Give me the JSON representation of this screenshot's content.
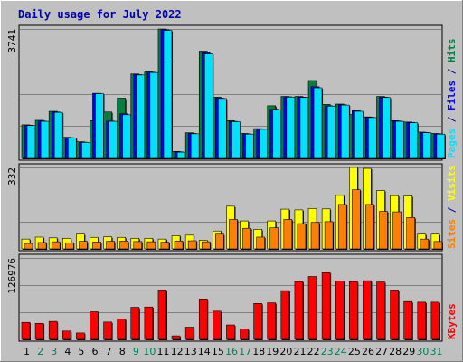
{
  "chart_data": {
    "type": "bar",
    "title": "Daily usage for July 2022",
    "x": [
      1,
      2,
      3,
      4,
      5,
      6,
      7,
      8,
      9,
      10,
      11,
      12,
      13,
      14,
      15,
      16,
      17,
      18,
      19,
      20,
      21,
      22,
      23,
      24,
      25,
      26,
      27,
      28,
      29,
      30,
      31
    ],
    "weekend_days": [
      2,
      3,
      9,
      10,
      16,
      17,
      23,
      24,
      30,
      31
    ],
    "panels": [
      {
        "id": "hits",
        "ymax_label": "3741",
        "ymax": 3741,
        "axis_label_parts": [
          {
            "text": "Pages",
            "color": "#00e0ff"
          },
          {
            "text": " / ",
            "color": "#0000aa"
          },
          {
            "text": "Files",
            "color": "#0000ff"
          },
          {
            "text": " / ",
            "color": "#0000aa"
          },
          {
            "text": "Hits",
            "color": "#008040"
          }
        ],
        "series": [
          {
            "name": "Hits",
            "color": "#008040",
            "values": [
              970,
              1100,
              1360,
              610,
              480,
              1090,
              1340,
              1740,
              2440,
              2500,
              3740,
              200,
              740,
              3100,
              1770,
              1090,
              720,
              860,
              1520,
              1790,
              1790,
              2250,
              1560,
              1570,
              1270,
              1200,
              1790,
              1090,
              1050,
              760,
              720
            ]
          },
          {
            "name": "Files",
            "color": "#0000ff",
            "values": [
              960,
              1080,
              1340,
              600,
              470,
              1880,
              1080,
              1290,
              2420,
              2490,
              3720,
              190,
              720,
              3050,
              1740,
              1070,
              710,
              850,
              1420,
              1780,
              1770,
              2070,
              1520,
              1550,
              1380,
              1190,
              1770,
              1080,
              1040,
              750,
              710
            ]
          },
          {
            "name": "Pages",
            "color": "#00e0ff",
            "values": [
              950,
              1070,
              1330,
              590,
              460,
              1870,
              1070,
              1260,
              2410,
              2480,
              3700,
              180,
              710,
              3020,
              1730,
              1060,
              700,
              840,
              1400,
              1770,
              1760,
              2040,
              1510,
              1540,
              1360,
              1180,
              1760,
              1070,
              1030,
              740,
              700
            ]
          }
        ]
      },
      {
        "id": "visits",
        "ymax_label": "332",
        "ymax": 332,
        "axis_label_parts": [
          {
            "text": "Sites",
            "color": "#ff8000"
          },
          {
            "text": " / ",
            "color": "#0000aa"
          },
          {
            "text": "Visits",
            "color": "#ffff00"
          }
        ],
        "series": [
          {
            "name": "Visits",
            "color": "#ffff00",
            "values": [
              40,
              48,
              45,
              43,
              60,
              47,
              49,
              47,
              43,
              43,
              40,
              54,
              56,
              35,
              73,
              174,
              114,
              80,
              114,
              162,
              159,
              165,
              163,
              218,
              332,
              328,
              238,
              217,
              216,
              60,
              60
            ]
          },
          {
            "name": "Sites",
            "color": "#ff8000",
            "values": [
              22,
              26,
              29,
              25,
              31,
              28,
              31,
              32,
              30,
              29,
              27,
              32,
              33,
              29,
              60,
              120,
              84,
              48,
              86,
              120,
              103,
              108,
              111,
              181,
              241,
              181,
              153,
              151,
              128,
              40,
              30
            ]
          }
        ]
      },
      {
        "id": "kbytes",
        "ymax_label": "126976",
        "ymax": 126976,
        "axis_label_parts": [
          {
            "text": "KBytes",
            "color": "#ff0000"
          }
        ],
        "series": [
          {
            "name": "KBytes",
            "color": "#ff0000",
            "values": [
              26500,
              25000,
              28000,
              13000,
              10000,
              43000,
              27000,
              31500,
              50000,
              50500,
              77000,
              5500,
              19000,
              63000,
              44000,
              22500,
              16000,
              56000,
              57000,
              76000,
              90000,
              98000,
              104000,
              91000,
              90000,
              91500,
              89500,
              77000,
              59000,
              58000,
              58000
            ]
          }
        ]
      }
    ]
  }
}
